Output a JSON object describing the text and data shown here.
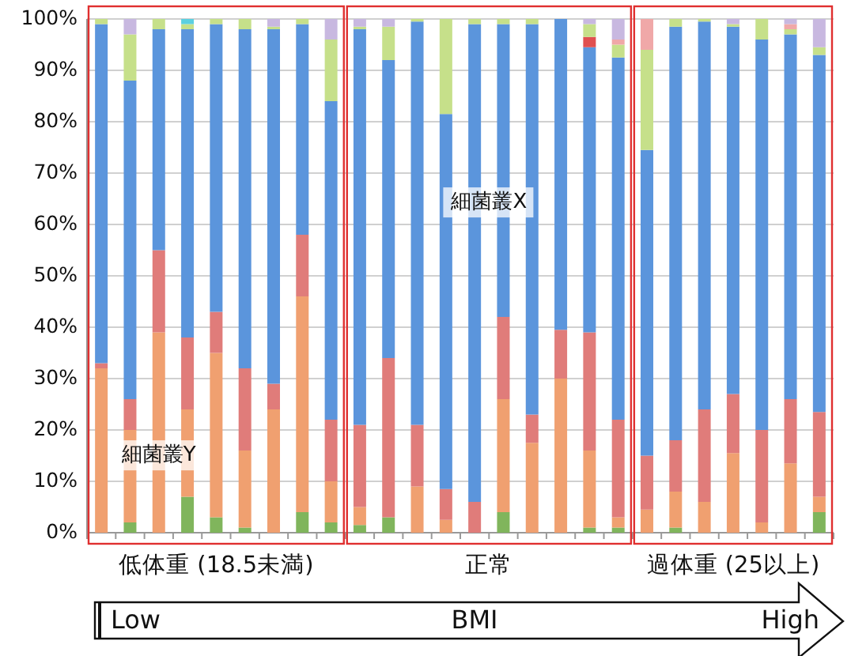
{
  "chart_data": {
    "type": "bar",
    "stacked": true,
    "categories": [
      null,
      null,
      null,
      null,
      null,
      null,
      null,
      null,
      null,
      null,
      null,
      null,
      null,
      null,
      null,
      null,
      null,
      null,
      null,
      null,
      null,
      null,
      null,
      null,
      null,
      null
    ],
    "series": [
      {
        "color": "#80b55c",
        "values": [
          0,
          2,
          0,
          7,
          3,
          1,
          0,
          4,
          2,
          1.5,
          3,
          0,
          0,
          0,
          4,
          0,
          0,
          1,
          1,
          0,
          1,
          0,
          0,
          0,
          0,
          4
        ]
      },
      {
        "color": "#f0a070",
        "values": [
          32,
          18,
          39,
          17,
          32,
          15,
          24,
          42,
          8,
          3.5,
          0,
          9,
          2.5,
          0,
          22,
          17.5,
          30,
          15,
          2,
          4.5,
          7,
          6,
          15.5,
          2,
          13.5,
          3
        ]
      },
      {
        "color": "#e07c7a",
        "values": [
          1,
          6,
          16,
          14,
          8,
          16,
          5,
          12,
          12,
          16,
          31,
          12,
          6,
          6,
          16,
          5.5,
          9.5,
          23,
          19,
          10.5,
          10,
          18,
          11.5,
          18,
          12.5,
          16.5
        ]
      },
      {
        "color": "#5b95dc",
        "values": [
          66,
          62,
          43,
          60,
          56,
          66,
          69,
          41,
          62,
          77,
          58,
          78.5,
          73,
          93,
          57,
          76,
          60.5,
          55.5,
          70.5,
          59.5,
          80.5,
          75.5,
          71.5,
          76,
          71,
          69.5
        ]
      },
      {
        "color": "#e05050",
        "values": [
          0,
          0,
          0,
          0,
          0,
          0,
          0,
          0,
          0,
          0,
          0,
          0,
          0,
          0,
          0,
          0,
          0,
          2,
          0,
          0,
          0,
          0,
          0,
          0,
          0,
          0
        ]
      },
      {
        "color": "#c6e08a",
        "values": [
          1,
          9,
          2,
          1,
          1,
          2,
          0.5,
          1,
          12,
          0.5,
          6.5,
          0.5,
          18.5,
          1,
          1,
          1,
          0,
          2.5,
          2.5,
          19.5,
          1.5,
          0.5,
          0.5,
          4,
          1,
          1.5
        ]
      },
      {
        "color": "#f0a8a8",
        "values": [
          0,
          0,
          0,
          0,
          0,
          0,
          0,
          0,
          0,
          0,
          0,
          0,
          0,
          0,
          0,
          0,
          0,
          0,
          1,
          6,
          0,
          0,
          0,
          0,
          1,
          0
        ]
      },
      {
        "color": "#5cd0e0",
        "values": [
          0,
          0,
          0,
          1,
          0,
          0,
          0,
          0,
          0,
          0,
          0,
          0,
          0,
          0,
          0,
          0,
          0,
          0,
          0,
          0,
          0,
          0,
          0,
          0,
          0,
          0
        ]
      },
      {
        "color": "#c8b8e0",
        "values": [
          0,
          3,
          0,
          0,
          0,
          0,
          1.5,
          0,
          4,
          1.5,
          1.5,
          0,
          0,
          0,
          0,
          0,
          0,
          1,
          4,
          0,
          0,
          0,
          1,
          0,
          1,
          5.5
        ]
      }
    ],
    "ylim": [
      0,
      100
    ],
    "yticks": [
      {
        "value": 0,
        "label": "0%"
      },
      {
        "value": 10,
        "label": "10%"
      },
      {
        "value": 20,
        "label": "20%"
      },
      {
        "value": 30,
        "label": "30%"
      },
      {
        "value": 40,
        "label": "40%"
      },
      {
        "value": 50,
        "label": "50%"
      },
      {
        "value": 60,
        "label": "60%"
      },
      {
        "value": 70,
        "label": "70%"
      },
      {
        "value": 80,
        "label": "80%"
      },
      {
        "value": 90,
        "label": "90%"
      },
      {
        "value": 100,
        "label": "100%"
      }
    ],
    "grid": "y",
    "annotations": [
      "細菌叢X",
      "細菌叢Y",
      "低体重 (18.5未満)",
      "正常",
      "過体重 (25以上)",
      "Low",
      "BMI",
      "High"
    ]
  }
}
